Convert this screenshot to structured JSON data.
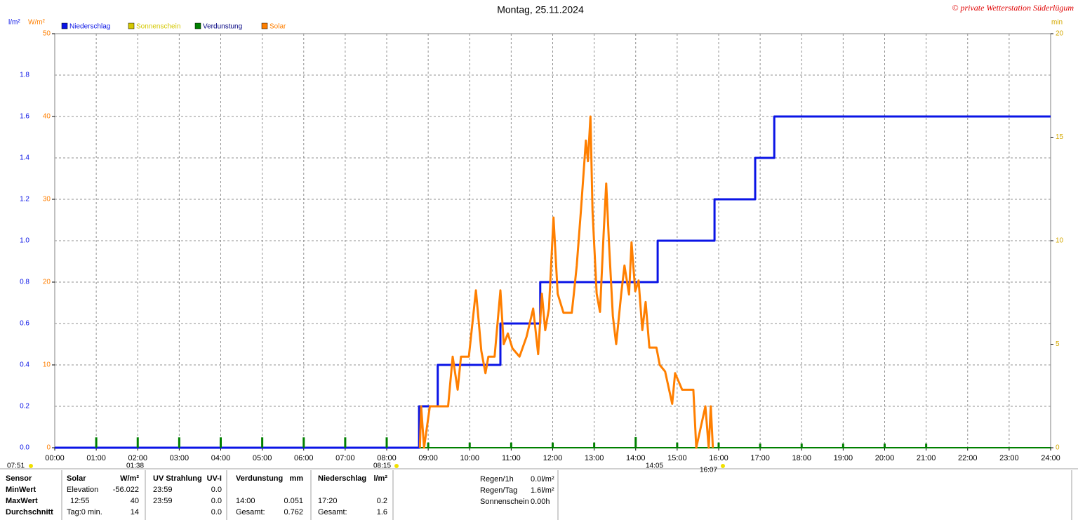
{
  "chart_data": {
    "type": "line",
    "title": "Montag, 25.11.2024",
    "copyright": "© private Wetterstation Süderlügum",
    "y_label": "l/m²",
    "y2_label": "W/m²",
    "y3_label": "min",
    "xlim": [
      0,
      24
    ],
    "xticks": [
      {
        "value": 0,
        "label": "00:00"
      },
      {
        "value": 1,
        "label": "01:00"
      },
      {
        "value": 2,
        "label": "02:00"
      },
      {
        "value": 3,
        "label": "03:00"
      },
      {
        "value": 4,
        "label": "04:00"
      },
      {
        "value": 5,
        "label": "05:00"
      },
      {
        "value": 6,
        "label": "06:00"
      },
      {
        "value": 7,
        "label": "07:00"
      },
      {
        "value": 8,
        "label": "08:00"
      },
      {
        "value": 9,
        "label": "09:00"
      },
      {
        "value": 10,
        "label": "10:00"
      },
      {
        "value": 11,
        "label": "11:00"
      },
      {
        "value": 12,
        "label": "12:00"
      },
      {
        "value": 13,
        "label": "13:00"
      },
      {
        "value": 14,
        "label": "14:00"
      },
      {
        "value": 15,
        "label": "15:00"
      },
      {
        "value": 16,
        "label": "16:00"
      },
      {
        "value": 17,
        "label": "17:00"
      },
      {
        "value": 18,
        "label": "18:00"
      },
      {
        "value": 19,
        "label": "19:00"
      },
      {
        "value": 20,
        "label": "20:00"
      },
      {
        "value": 21,
        "label": "21:00"
      },
      {
        "value": 22,
        "label": "22:00"
      },
      {
        "value": 23,
        "label": "23:00"
      },
      {
        "value": 24,
        "label": "24:00"
      }
    ],
    "ylim": [
      0,
      2
    ],
    "yticks": [
      {
        "value": 0,
        "label": "0.0"
      },
      0.2,
      0.4,
      0.6,
      0.8,
      {
        "value": 1,
        "label": "1.0"
      },
      1.2,
      1.4,
      1.6,
      1.8
    ],
    "y2lim": [
      0,
      50
    ],
    "y2ticks": [
      0,
      10,
      20,
      30,
      40,
      50
    ],
    "y3lim": [
      0,
      20
    ],
    "y3ticks": [
      0,
      5,
      10,
      15,
      20
    ],
    "grid": true,
    "series": [
      {
        "name": "Niederschlag",
        "color": "#0a14e6",
        "axis": "y",
        "x": [
          0,
          8.78,
          8.78,
          9.23,
          9.23,
          10.74,
          10.74,
          11.7,
          11.7,
          14.53,
          14.53,
          15.9,
          15.9,
          16.88,
          16.88,
          17.34,
          17.34,
          24
        ],
        "values": [
          0,
          0,
          0.2,
          0.2,
          0.4,
          0.4,
          0.6,
          0.6,
          0.8,
          0.8,
          1.0,
          1.0,
          1.2,
          1.2,
          1.4,
          1.4,
          1.6,
          1.6
        ]
      },
      {
        "name": "Sonnenschein",
        "color": "#d4c800",
        "axis": "y3"
      },
      {
        "name": "Verdunstung",
        "color": "#008000",
        "axis": "y",
        "type": "bar",
        "x": [
          1,
          2,
          3,
          4,
          5,
          6,
          7,
          8,
          9,
          10,
          11,
          12,
          13,
          14,
          15,
          16,
          17,
          18,
          19,
          20,
          21
        ],
        "values": [
          0.05,
          0.05,
          0.05,
          0.05,
          0.05,
          0.05,
          0.05,
          0.05,
          0.025,
          0.025,
          0.025,
          0.025,
          0.025,
          0.051,
          0.025,
          0.025,
          0.02,
          0.02,
          0.02,
          0.02,
          0.02
        ]
      },
      {
        "name": "Solar",
        "color": "#ff7f00",
        "axis": "y2",
        "x": [
          8.8,
          8.83,
          8.9,
          9.04,
          9.48,
          9.59,
          9.71,
          9.79,
          9.98,
          10.15,
          10.28,
          10.38,
          10.45,
          10.6,
          10.74,
          10.82,
          10.92,
          11.03,
          11.2,
          11.37,
          11.53,
          11.65,
          11.74,
          11.82,
          11.91,
          12.02,
          12.12,
          12.26,
          12.46,
          12.51,
          12.58,
          12.68,
          12.8,
          12.85,
          12.91,
          12.96,
          13.06,
          13.14,
          13.23,
          13.29,
          13.36,
          13.45,
          13.53,
          13.65,
          13.73,
          13.84,
          13.9,
          13.99,
          14.07,
          14.16,
          14.24,
          14.33,
          14.5,
          14.58,
          14.71,
          14.88,
          14.95,
          15.12,
          15.39,
          15.46,
          15.68,
          15.76,
          15.81,
          15.86
        ],
        "values": [
          0,
          5,
          0,
          5,
          5,
          11,
          7,
          11,
          11,
          19,
          11.7,
          9,
          11,
          11,
          19,
          12.5,
          13.8,
          12,
          11,
          13.4,
          16.8,
          11.3,
          18.6,
          14.2,
          16.8,
          27.8,
          18.6,
          16.3,
          16.3,
          18.6,
          22,
          28.6,
          37.1,
          34.6,
          40,
          28.6,
          18.6,
          16.4,
          26.1,
          31.9,
          24.4,
          15.9,
          12.5,
          18.5,
          22,
          18.5,
          24.8,
          18.9,
          20.2,
          14.2,
          17.6,
          12.1,
          12.1,
          10,
          9.2,
          5.3,
          9,
          7,
          7,
          0,
          5,
          0,
          5,
          0
        ]
      }
    ],
    "annotations": [
      "07:51",
      "01:38",
      "08:15",
      "14:05",
      "16:07"
    ]
  },
  "stats": {
    "rows": [
      [
        "Sensor",
        "Solar",
        "W/m²",
        "UV Strahlung",
        "UV-I",
        "Verdunstung",
        "mm",
        "Niederschlag",
        "l/m²"
      ],
      [
        "MinWert",
        "Elevation",
        "-56.022",
        "23:59",
        "0.0",
        null,
        null,
        null,
        null
      ],
      [
        "MaxWert",
        "12:55",
        "40",
        "23:59",
        "0.0",
        "14:00",
        "0.051",
        "17:20",
        "0.2"
      ],
      [
        "Durchschnitt",
        "Tag:0 min.",
        "14",
        null,
        "0.0",
        "Gesamt:",
        "0.762",
        "Gesamt:",
        "1.6"
      ]
    ],
    "rain": [
      [
        "Regen/1h",
        "0.0l/m²"
      ],
      [
        "Regen/Tag",
        "1.6l/m²"
      ],
      [
        "Sonnenschein",
        "0.00h"
      ]
    ]
  }
}
